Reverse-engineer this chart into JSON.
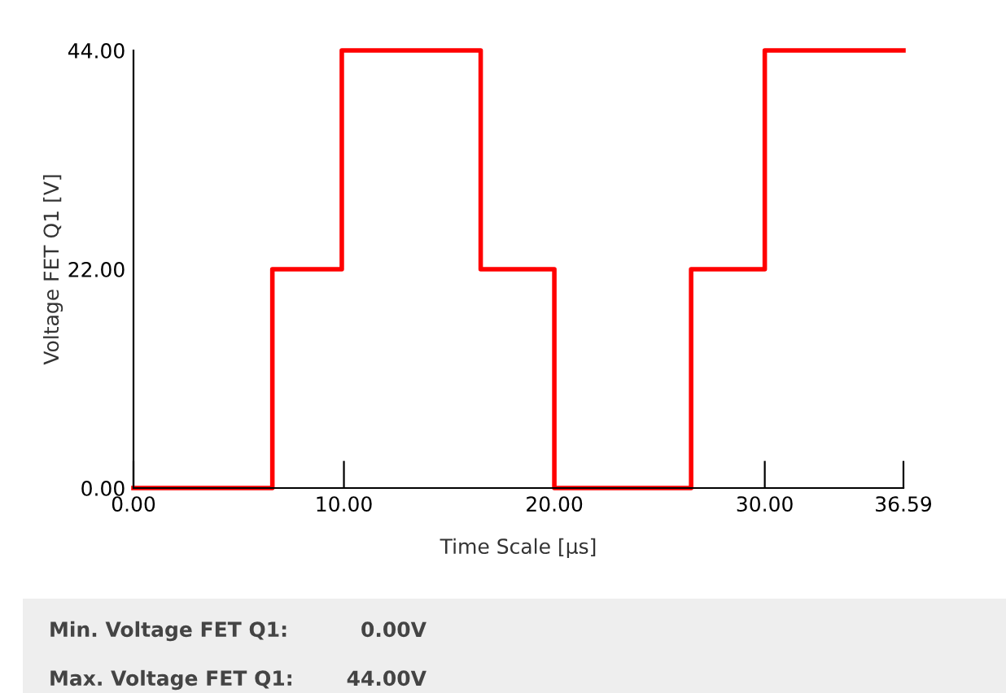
{
  "chart_data": {
    "type": "step",
    "xlabel": "Time Scale [µs]",
    "ylabel": "Voltage FET Q1 [V]",
    "x": [
      0,
      6.6,
      9.9,
      16.5,
      20,
      26.5,
      30,
      36.59
    ],
    "series": [
      {
        "color": "#ff0000",
        "values": [
          0,
          22,
          44,
          22,
          0,
          22,
          44,
          44
        ]
      }
    ],
    "xlim": [
      0,
      36.59
    ],
    "ylim": [
      0,
      44
    ],
    "xticks": [
      {
        "value": 0,
        "label": "0.00"
      },
      {
        "value": 10,
        "label": "10.00"
      },
      {
        "value": 20,
        "label": "20.00"
      },
      {
        "value": 30,
        "label": "30.00"
      },
      {
        "value": 36.59,
        "label": "36.59"
      }
    ],
    "yticks": [
      {
        "value": 0,
        "label": "0.00"
      },
      {
        "value": 22,
        "label": "22.00"
      },
      {
        "value": 44,
        "label": "44.00"
      }
    ],
    "grid": false,
    "legend": false,
    "annotations": [
      "Min. Voltage FET Q1:",
      "0.00V",
      "Max. Voltage FET Q1:",
      "44.00V"
    ]
  }
}
